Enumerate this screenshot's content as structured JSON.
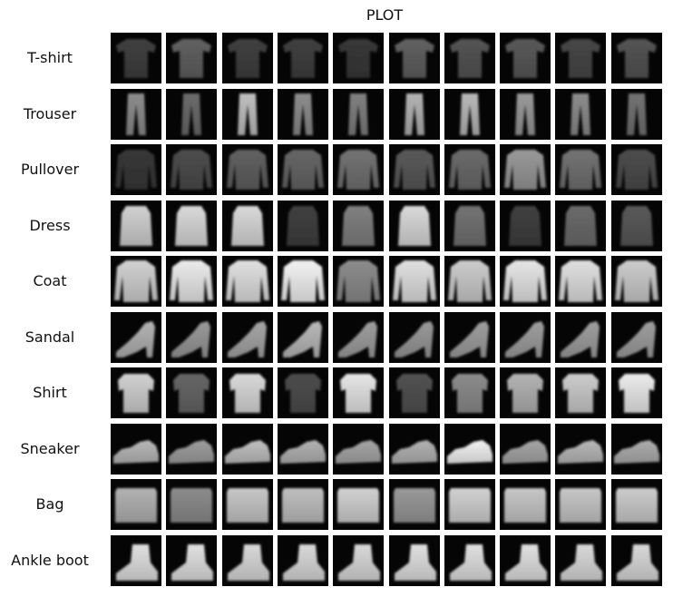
{
  "title": "PLOT",
  "rows": [
    {
      "label": "T-shirt",
      "shape": "tshirt",
      "levels": [
        0.25,
        0.38,
        0.25,
        0.25,
        0.22,
        0.38,
        0.33,
        0.35,
        0.28,
        0.33
      ]
    },
    {
      "label": "Trouser",
      "shape": "trouser",
      "levels": [
        0.55,
        0.42,
        0.75,
        0.55,
        0.5,
        0.7,
        0.72,
        0.6,
        0.55,
        0.45
      ]
    },
    {
      "label": "Pullover",
      "shape": "pullover",
      "levels": [
        0.22,
        0.3,
        0.38,
        0.4,
        0.45,
        0.35,
        0.42,
        0.6,
        0.45,
        0.3
      ]
    },
    {
      "label": "Dress",
      "shape": "dress",
      "levels": [
        0.82,
        0.85,
        0.85,
        0.25,
        0.5,
        0.85,
        0.45,
        0.25,
        0.42,
        0.35
      ]
    },
    {
      "label": "Coat",
      "shape": "coat",
      "levels": [
        0.82,
        0.92,
        0.88,
        0.95,
        0.55,
        0.88,
        0.8,
        0.9,
        0.88,
        0.8
      ]
    },
    {
      "label": "Sandal",
      "shape": "sandal",
      "levels": [
        0.7,
        0.6,
        0.65,
        0.72,
        0.62,
        0.6,
        0.62,
        0.62,
        0.62,
        0.62
      ]
    },
    {
      "label": "Shirt",
      "shape": "shirt",
      "levels": [
        0.82,
        0.4,
        0.85,
        0.3,
        0.9,
        0.32,
        0.55,
        0.7,
        0.8,
        0.92
      ]
    },
    {
      "label": "Sneaker",
      "shape": "sneaker",
      "levels": [
        0.72,
        0.62,
        0.75,
        0.7,
        0.65,
        0.7,
        0.95,
        0.65,
        0.72,
        0.68
      ]
    },
    {
      "label": "Bag",
      "shape": "bag",
      "levels": [
        0.7,
        0.55,
        0.78,
        0.75,
        0.82,
        0.6,
        0.82,
        0.78,
        0.78,
        0.8
      ]
    },
    {
      "label": "Ankle boot",
      "shape": "boot",
      "levels": [
        0.88,
        0.88,
        0.85,
        0.85,
        0.85,
        0.88,
        0.88,
        0.88,
        0.85,
        0.85
      ]
    }
  ]
}
